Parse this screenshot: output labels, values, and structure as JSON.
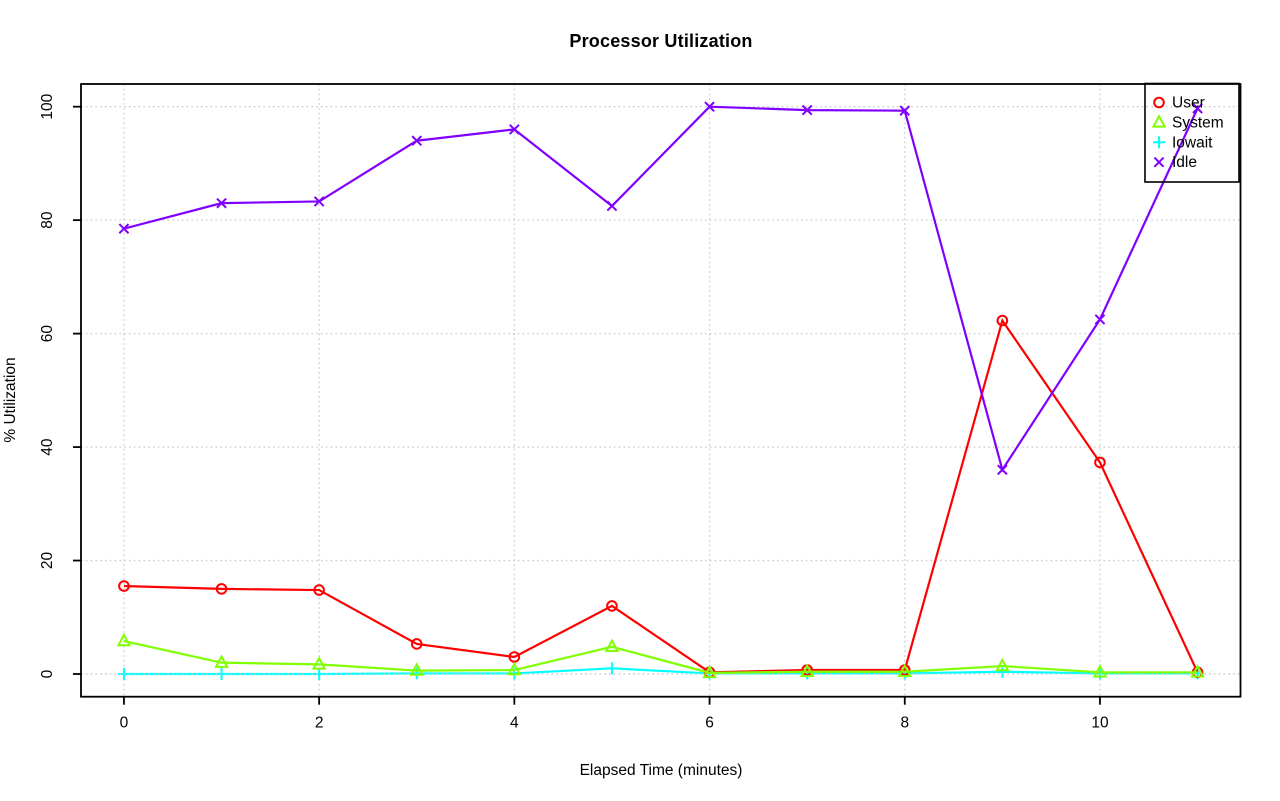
{
  "title": "Processor Utilization",
  "chart_data": {
    "type": "line",
    "title": "Processor Utilization",
    "xlabel": "Elapsed Time (minutes)",
    "ylabel": "% Utilization",
    "x": [
      0,
      1,
      2,
      3,
      4,
      5,
      6,
      7,
      8,
      9,
      10,
      11
    ],
    "series": [
      {
        "name": "User",
        "color": "#FF0000",
        "marker": "circle",
        "values": [
          15.5,
          15,
          14.8,
          5.3,
          3,
          12,
          0.3,
          0.7,
          0.7,
          62.3,
          37.3,
          0.3
        ]
      },
      {
        "name": "System",
        "color": "#80FF00",
        "marker": "triangle",
        "values": [
          5.8,
          2,
          1.7,
          0.6,
          0.7,
          4.8,
          0.2,
          0.4,
          0.4,
          1.4,
          0.3,
          0.3
        ]
      },
      {
        "name": "Iowait",
        "color": "#00FFFF",
        "marker": "plus",
        "values": [
          0,
          0,
          0,
          0.1,
          0.1,
          1,
          0.1,
          0.1,
          0.1,
          0.4,
          0.1,
          0.1
        ]
      },
      {
        "name": "Idle",
        "color": "#8000FF",
        "marker": "x",
        "values": [
          78.5,
          83,
          83.3,
          94,
          96,
          82.5,
          100,
          99.4,
          99.3,
          36,
          62.5,
          99.7
        ]
      }
    ],
    "xticks": [
      0,
      2,
      4,
      6,
      8,
      10
    ],
    "yticks": [
      0,
      20,
      40,
      60,
      80,
      100
    ],
    "xtick_labels": [
      "0",
      "2",
      "4",
      "6",
      "8",
      "10"
    ],
    "ytick_labels": [
      "0",
      "20",
      "40",
      "60",
      "80",
      "100"
    ],
    "xlim": [
      -0.44,
      11.44
    ],
    "ylim": [
      -4,
      104
    ],
    "grid": true,
    "grid_style": "dotted",
    "grid_color": "#CCCCCC",
    "axis_color": "#000000",
    "background": "#FFFFFF",
    "legend": {
      "position": "top-right",
      "entries": [
        "User",
        "System",
        "Iowait",
        "Idle"
      ]
    }
  }
}
